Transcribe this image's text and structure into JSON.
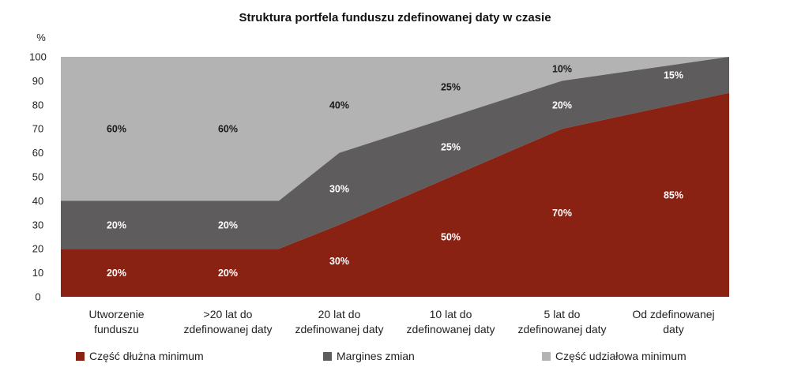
{
  "chart_data": {
    "type": "area",
    "title": "Struktura portfela funduszu zdefinowanej daty w czasie",
    "ylabel": "%",
    "ylim": [
      0,
      100
    ],
    "yticks": [
      0,
      10,
      20,
      30,
      40,
      50,
      60,
      70,
      80,
      90,
      100
    ],
    "categories": [
      [
        "Utworzenie",
        "funduszu"
      ],
      [
        ">20 lat do",
        "zdefinowanej daty"
      ],
      [
        "20 lat do",
        "zdefinowanej daty"
      ],
      [
        "10 lat do",
        "zdefinowanej daty"
      ],
      [
        "5 lat do",
        "zdefinowanej daty"
      ],
      [
        "Od zdefinowanej",
        "daty"
      ]
    ],
    "series": [
      {
        "name": "Część dłużna minimum",
        "color": "#8a2214",
        "label_color": "#ffffff",
        "values": [
          20,
          20,
          30,
          50,
          70,
          85
        ],
        "labels": [
          "20%",
          "20%",
          "30%",
          "50%",
          "70%",
          "85%"
        ]
      },
      {
        "name": "Margines zmian",
        "color": "#5e5c5d",
        "label_color": "#ffffff",
        "values": [
          20,
          20,
          30,
          25,
          20,
          15
        ],
        "labels": [
          "20%",
          "20%",
          "30%",
          "25%",
          "20%",
          "15%"
        ]
      },
      {
        "name": "Część udziałowa minimum",
        "color": "#b3b3b3",
        "label_color": "#1a1a1a",
        "values": [
          60,
          60,
          40,
          25,
          10,
          0
        ],
        "labels": [
          "60%",
          "60%",
          "40%",
          "25%",
          "10%",
          ""
        ]
      }
    ],
    "legend_position": "bottom",
    "grid": false
  }
}
